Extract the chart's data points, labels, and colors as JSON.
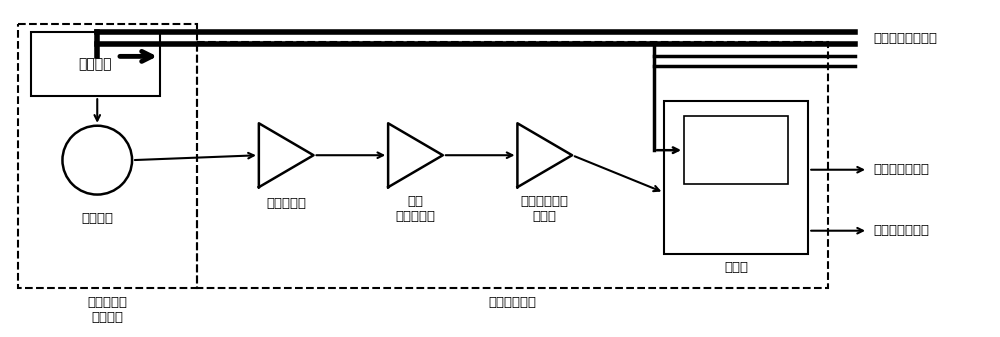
{
  "bg_color": "#ffffff",
  "line_color": "#000000",
  "text_color": "#000000",
  "fig_width": 10.0,
  "fig_height": 3.37,
  "dpi": 100,
  "labels": {
    "power_supply": "供电部分",
    "photo_receiver": "光接收器",
    "trans_amp": "跨阻放大器",
    "amp1_line1": "一级",
    "amp1_line2": "信号放大器",
    "amp2_line1": "二级可调增益",
    "amp2_line2": "放大器",
    "comparator": "比较器",
    "optical_unit_line1": "光信号接收",
    "optical_unit_line2": "处理单元",
    "signal_unit": "信号处理单元",
    "from_master": "来自主控处理单元",
    "to_ranging": "至测距处理单元",
    "to_master": "至主控处理单元"
  }
}
